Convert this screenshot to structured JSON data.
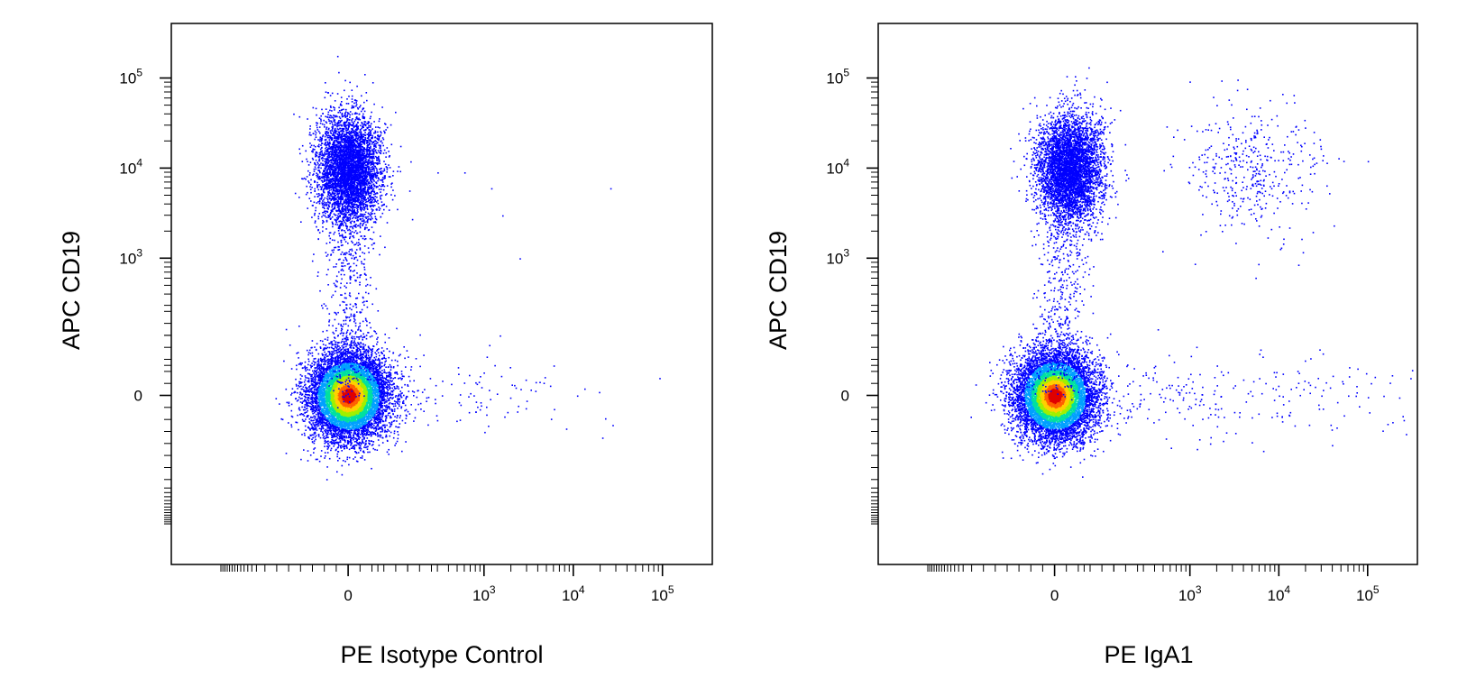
{
  "chart_data": [
    {
      "type": "scatter",
      "subtype": "flow-cytometry-density-dot-plot",
      "title": "",
      "xlabel": "PE Isotype Control",
      "ylabel": "APC  CD19",
      "x_scale": "biexponential",
      "y_scale": "biexponential",
      "x_ticks": [
        {
          "value": 0,
          "label": "0"
        },
        {
          "value": 1000,
          "base": "10",
          "exp": "3"
        },
        {
          "value": 10000,
          "base": "10",
          "exp": "4"
        },
        {
          "value": 100000,
          "base": "10",
          "exp": "5"
        }
      ],
      "y_ticks": [
        {
          "value": 0,
          "label": "0"
        },
        {
          "value": 1000,
          "base": "10",
          "exp": "3"
        },
        {
          "value": 10000,
          "base": "10",
          "exp": "4"
        },
        {
          "value": 100000,
          "base": "10",
          "exp": "5"
        }
      ],
      "density_colors": [
        "#0000ff",
        "#00a0ff",
        "#00e0a0",
        "#a0f000",
        "#ffd000",
        "#ff6000",
        "#e00000"
      ],
      "populations": [
        {
          "center": [
            0,
            0
          ],
          "spread": "dense",
          "description_values": {
            "x_range": [
              -500,
              350
            ],
            "y_range": [
              -600,
              350
            ]
          }
        },
        {
          "center": [
            0,
            10000
          ],
          "spread": "medium",
          "description_values": {
            "x_range": [
              -400,
              300
            ],
            "y_range": [
              2000,
              50000
            ]
          }
        }
      ],
      "outliers": [
        [
          300,
          9000
        ],
        [
          600,
          9000
        ],
        [
          1200,
          6000
        ],
        [
          1600,
          3000
        ],
        [
          2500,
          1000
        ],
        [
          26000,
          6000
        ],
        [
          6000,
          100
        ],
        [
          11000,
          0
        ],
        [
          1500,
          200
        ]
      ]
    },
    {
      "type": "scatter",
      "subtype": "flow-cytometry-density-dot-plot",
      "title": "",
      "xlabel": "PE  IgA1",
      "ylabel": "APC  CD19",
      "x_scale": "biexponential",
      "y_scale": "biexponential",
      "x_ticks": [
        {
          "value": 0,
          "label": "0"
        },
        {
          "value": 1000,
          "base": "10",
          "exp": "3"
        },
        {
          "value": 10000,
          "base": "10",
          "exp": "4"
        },
        {
          "value": 100000,
          "base": "10",
          "exp": "5"
        }
      ],
      "y_ticks": [
        {
          "value": 0,
          "label": "0"
        },
        {
          "value": 1000,
          "base": "10",
          "exp": "3"
        },
        {
          "value": 10000,
          "base": "10",
          "exp": "4"
        },
        {
          "value": 100000,
          "base": "10",
          "exp": "5"
        }
      ],
      "density_colors": [
        "#0000ff",
        "#00a0ff",
        "#00e0a0",
        "#a0f000",
        "#ffd000",
        "#ff6000",
        "#e00000"
      ],
      "populations": [
        {
          "center": [
            0,
            0
          ],
          "spread": "dense",
          "description_values": {
            "x_range": [
              -500,
              400
            ],
            "y_range": [
              -600,
              350
            ]
          }
        },
        {
          "center": [
            50,
            10000
          ],
          "spread": "medium",
          "description_values": {
            "x_range": [
              -300,
              400
            ],
            "y_range": [
              2000,
              50000
            ]
          }
        },
        {
          "center": [
            5000,
            10000
          ],
          "spread": "sparse",
          "description_values": {
            "x_range": [
              1200,
              30000
            ],
            "y_range": [
              1000,
              40000
            ]
          }
        }
      ],
      "outliers": [
        [
          2000,
          100
        ],
        [
          5000,
          0
        ],
        [
          10000,
          0
        ],
        [
          30000,
          0
        ],
        [
          60000,
          0
        ],
        [
          100000,
          12000
        ]
      ]
    }
  ]
}
